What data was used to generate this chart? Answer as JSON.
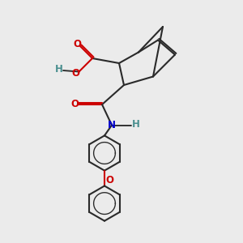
{
  "bg_color": "#ebebeb",
  "bond_color": "#2a2a2a",
  "oxygen_color": "#cc0000",
  "nitrogen_color": "#0000cc",
  "h_color": "#4a8f8f",
  "line_width": 1.5,
  "figsize": [
    3.0,
    3.0
  ],
  "dpi": 100,
  "xlim": [
    0,
    10
  ],
  "ylim": [
    0,
    10
  ]
}
